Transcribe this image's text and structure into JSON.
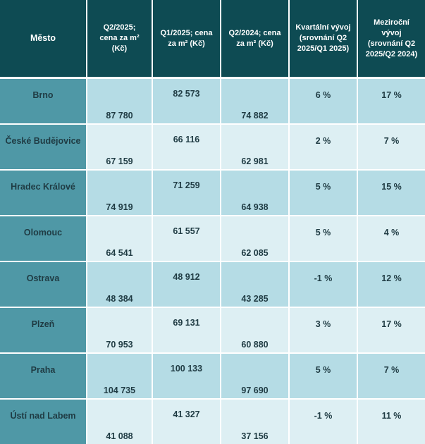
{
  "table": {
    "headers": [
      "Město",
      "Q2/2025;\ncena za m²\n(Kč)",
      "Q1/2025;  cena\nza m² (Kč)",
      "Q2/2024; cena\nza m² (Kč)",
      "Kvartální vývoj\n(srovnání Q2\n2025/Q1 2025)",
      "Meziroční\nvývoj\n(srovnání Q2\n2025/Q2 2024)"
    ],
    "rows": [
      {
        "city": "Brno",
        "q2_2025": "87 780",
        "q1_2025": "82 573",
        "q2_2024": "74 882",
        "qoq": "6 %",
        "yoy": "17 %"
      },
      {
        "city": "České Budějovice",
        "q2_2025": "67 159",
        "q1_2025": "66 116",
        "q2_2024": "62 981",
        "qoq": "2 %",
        "yoy": "7 %"
      },
      {
        "city": "Hradec Králové",
        "q2_2025": "74 919",
        "q1_2025": "71 259",
        "q2_2024": "64 938",
        "qoq": "5 %",
        "yoy": "15 %"
      },
      {
        "city": "Olomouc",
        "q2_2025": "64 541",
        "q1_2025": "61 557",
        "q2_2024": "62 085",
        "qoq": "5 %",
        "yoy": "4 %"
      },
      {
        "city": "Ostrava",
        "q2_2025": "48 384",
        "q1_2025": "48 912",
        "q2_2024": "43 285",
        "qoq": "-1 %",
        "yoy": "12 %"
      },
      {
        "city": "Plzeň",
        "q2_2025": "70 953",
        "q1_2025": "69 131",
        "q2_2024": "60 880",
        "qoq": "3 %",
        "yoy": "17 %"
      },
      {
        "city": "Praha",
        "q2_2025": "104 735",
        "q1_2025": "100 133",
        "q2_2024": "97 690",
        "qoq": "5 %",
        "yoy": "7 %"
      },
      {
        "city": "Ústí nad Labem",
        "q2_2025": "41 088",
        "q1_2025": "41 327",
        "q2_2024": "37 156",
        "qoq": "-1 %",
        "yoy": "11 %"
      }
    ]
  },
  "colors": {
    "header_bg": "#0e4b53",
    "city_col_bg": "#4f98a6",
    "row_alt_bg": "#b5dce5",
    "row_plain_bg": "#ddeff3",
    "text": "#1f3b43"
  }
}
